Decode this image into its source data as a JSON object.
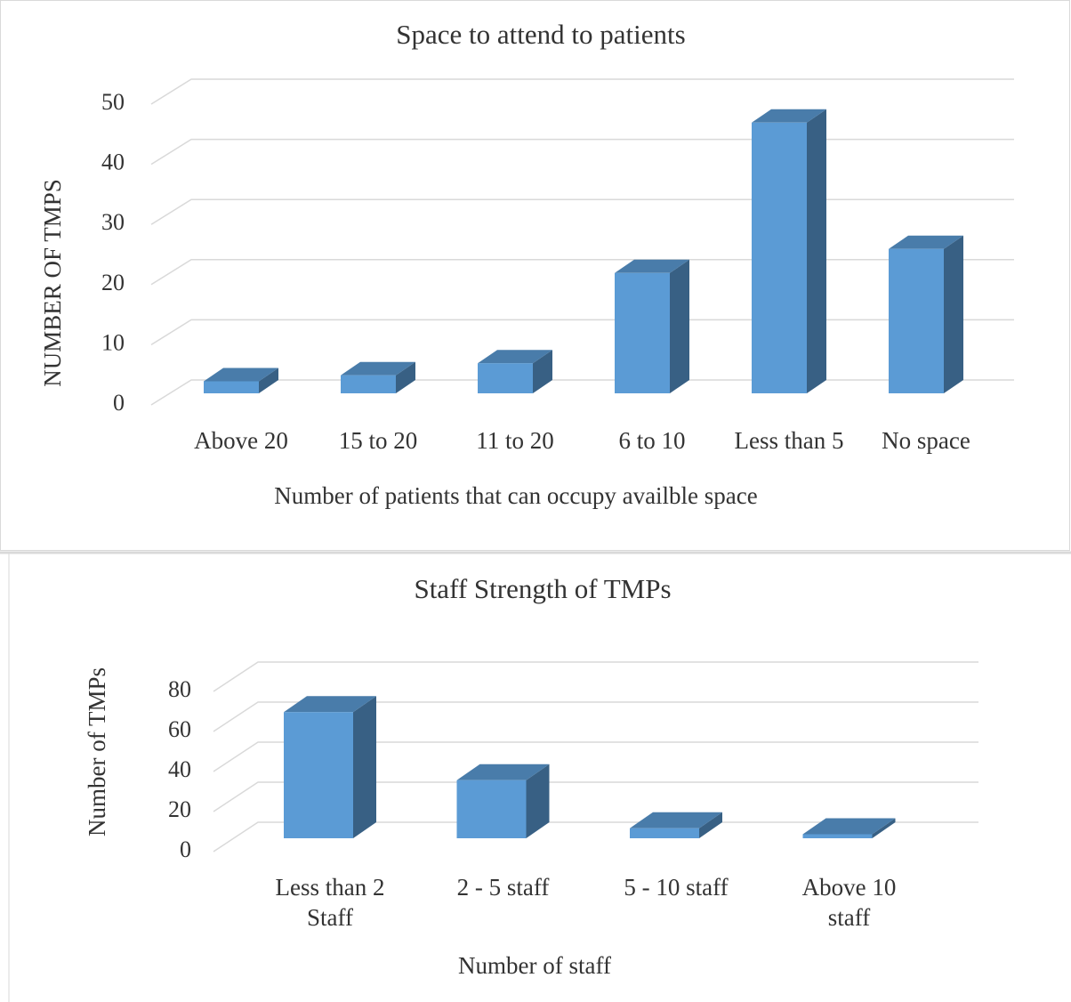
{
  "chart_data": [
    {
      "type": "bar3d",
      "title": "Space to attend to patients",
      "x_label": "Number of patients that can occupy availble space",
      "y_label": "NUMBER OF TMPS",
      "categories": [
        "Above 20",
        "15 to 20",
        "11 to 20",
        "6 to 10",
        "Less than 5",
        "No space"
      ],
      "values": [
        2,
        3,
        5,
        20,
        45,
        24
      ],
      "color": "#5b9bd5",
      "ylim": [
        0,
        50
      ],
      "yticks": [
        0,
        10,
        20,
        30,
        40,
        50
      ],
      "grid": true
    },
    {
      "type": "bar3d",
      "title": "Staff Strength of TMPs",
      "x_label": "Number of staff",
      "y_label": "Number of  TMPs",
      "categories": [
        "Less than 2 Staff",
        "2 - 5 staff",
        "5 - 10 staff",
        "Above 10 staff"
      ],
      "values": [
        63,
        29,
        5,
        2
      ],
      "color": "#5b9bd5",
      "ylim": [
        0,
        80
      ],
      "yticks": [
        0,
        20,
        40,
        60,
        80
      ],
      "grid": true
    }
  ]
}
